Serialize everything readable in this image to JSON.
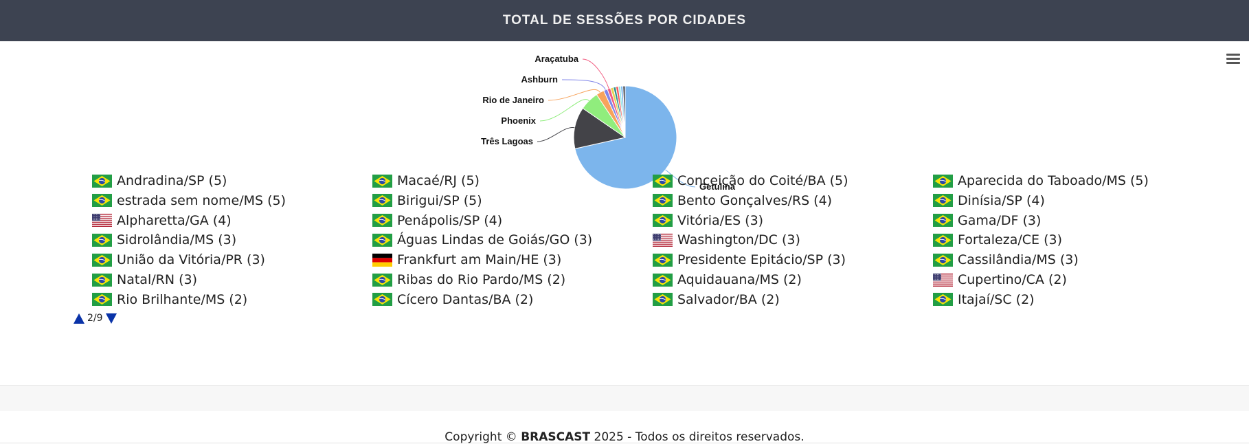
{
  "header": {
    "title": "TOTAL DE SESSÕES POR CIDADES"
  },
  "chart_data": {
    "type": "pie",
    "title": "",
    "slices": [
      {
        "name": "Getulina",
        "value": 71.0,
        "color": "#7cb5ec"
      },
      {
        "name": "Três Lagoas",
        "value": 13.0,
        "color": "#434348"
      },
      {
        "name": "Phoenix",
        "value": 6.0,
        "color": "#90ed7d"
      },
      {
        "name": "Rio de Janeiro",
        "value": 2.5,
        "color": "#f7a35c"
      },
      {
        "name": "Ashburn",
        "value": 1.2,
        "color": "#8085e9"
      },
      {
        "name": "Araçatuba",
        "value": 1.0,
        "color": "#f15c80"
      },
      {
        "name": "",
        "value": 0.9,
        "color": "#e4d354"
      },
      {
        "name": "",
        "value": 0.8,
        "color": "#2b908f"
      },
      {
        "name": "",
        "value": 0.8,
        "color": "#f45b5b"
      },
      {
        "name": "",
        "value": 0.7,
        "color": "#91e8e1"
      },
      {
        "name": "",
        "value": 0.7,
        "color": "#7cb5ec"
      },
      {
        "name": "",
        "value": 0.7,
        "color": "#434348"
      }
    ]
  },
  "legend": {
    "columns": [
      [
        {
          "label": "Andradina/SP (5)",
          "flag": "br"
        },
        {
          "label": "estrada sem nome/MS (5)",
          "flag": "br"
        },
        {
          "label": "Alpharetta/GA (4)",
          "flag": "us"
        },
        {
          "label": "Sidrolândia/MS (3)",
          "flag": "br"
        },
        {
          "label": "União da Vitória/PR (3)",
          "flag": "br"
        },
        {
          "label": "Natal/RN (3)",
          "flag": "br"
        },
        {
          "label": "Rio Brilhante/MS (2)",
          "flag": "br"
        }
      ],
      [
        {
          "label": "Macaé/RJ (5)",
          "flag": "br"
        },
        {
          "label": "Birigui/SP (5)",
          "flag": "br"
        },
        {
          "label": "Penápolis/SP (4)",
          "flag": "br"
        },
        {
          "label": "Águas Lindas de Goiás/GO (3)",
          "flag": "br"
        },
        {
          "label": "Frankfurt am Main/HE (3)",
          "flag": "de"
        },
        {
          "label": "Ribas do Rio Pardo/MS (2)",
          "flag": "br"
        },
        {
          "label": "Cícero Dantas/BA (2)",
          "flag": "br"
        }
      ],
      [
        {
          "label": "Conceição do Coité/BA (5)",
          "flag": "br"
        },
        {
          "label": "Bento Gonçalves/RS (4)",
          "flag": "br"
        },
        {
          "label": "Vitória/ES (3)",
          "flag": "br"
        },
        {
          "label": "Washington/DC (3)",
          "flag": "us"
        },
        {
          "label": "Presidente Epitácio/SP (3)",
          "flag": "br"
        },
        {
          "label": "Aquidauana/MS (2)",
          "flag": "br"
        },
        {
          "label": "Salvador/BA (2)",
          "flag": "br"
        }
      ],
      [
        {
          "label": "Aparecida do Taboado/MS (5)",
          "flag": "br"
        },
        {
          "label": "Dinísia/SP (4)",
          "flag": "br"
        },
        {
          "label": "Gama/DF (3)",
          "flag": "br"
        },
        {
          "label": "Fortaleza/CE (3)",
          "flag": "br"
        },
        {
          "label": "Cassilândia/MS (3)",
          "flag": "br"
        },
        {
          "label": "Cupertino/CA (2)",
          "flag": "us"
        },
        {
          "label": "Itajaí/SC (2)",
          "flag": "br"
        }
      ]
    ]
  },
  "pager": {
    "text": "2/9"
  },
  "footer": {
    "prefix": "Copyright ©",
    "brand": "BRASCAST",
    "suffix": "2025 - Todos os direitos reservados."
  }
}
